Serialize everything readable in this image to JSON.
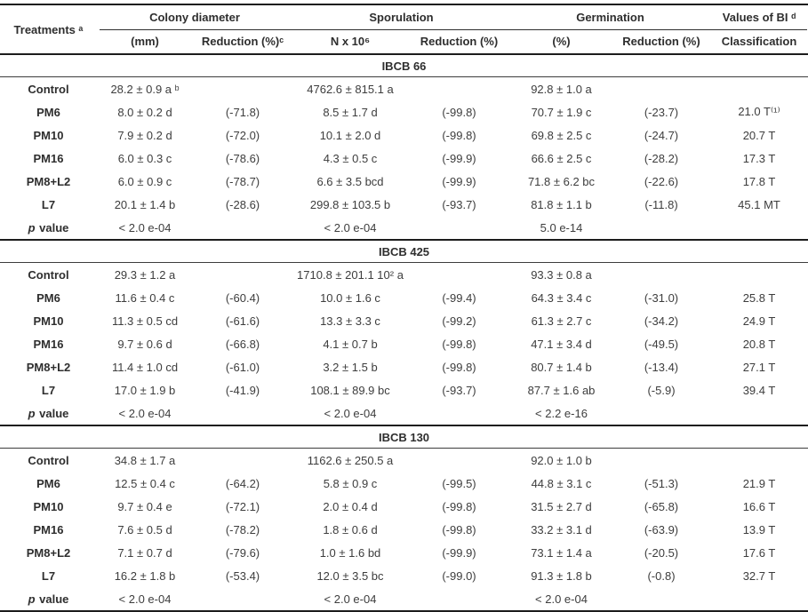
{
  "page": {
    "background": "#ffffff",
    "text_color": "#3d3d3d",
    "heading_color": "#2e2e2e",
    "rule_color": "#1c1c1c"
  },
  "table": {
    "header": {
      "treatments_label": "Treatments ᵃ",
      "groups": [
        {
          "label": "Colony diameter"
        },
        {
          "label": "Sporulation"
        },
        {
          "label": "Germination"
        },
        {
          "label": "Values of BI ᵈ"
        }
      ],
      "subcolumns": [
        "(mm)",
        "Reduction (%)ᶜ",
        "N x 10⁶",
        "Reduction (%)",
        "(%)",
        "Reduction (%)",
        "Classification"
      ]
    },
    "sections": [
      {
        "title": "IBCB 66",
        "rows": [
          {
            "label": "Control",
            "kind": "data",
            "cells": [
              "28.2 ± 0.9 a ᵇ",
              "",
              "4762.6 ± 815.1 a",
              "",
              "92.8 ± 1.0 a",
              "",
              ""
            ]
          },
          {
            "label": "PM6",
            "kind": "data",
            "cells": [
              "8.0 ± 0.2 d",
              "(-71.8)",
              "8.5 ± 1.7 d",
              "(-99.8)",
              "70.7 ± 1.9 c",
              "(-23.7)",
              "21.0 T⁽¹⁾"
            ]
          },
          {
            "label": "PM10",
            "kind": "data",
            "cells": [
              "7.9 ± 0.2 d",
              "(-72.0)",
              "10.1 ± 2.0 d",
              "(-99.8)",
              "69.8 ± 2.5 c",
              "(-24.7)",
              "20.7 T"
            ]
          },
          {
            "label": "PM16",
            "kind": "data",
            "cells": [
              "6.0 ± 0.3 c",
              "(-78.6)",
              "4.3 ± 0.5 c",
              "(-99.9)",
              "66.6 ± 2.5 c",
              "(-28.2)",
              "17.3 T"
            ]
          },
          {
            "label": "PM8+L2",
            "kind": "data",
            "cells": [
              "6.0 ± 0.9 c",
              "(-78.7)",
              "6.6 ± 3.5 bcd",
              "(-99.9)",
              "71.8 ± 6.2 bc",
              "(-22.6)",
              "17.8 T"
            ]
          },
          {
            "label": "L7",
            "kind": "data",
            "cells": [
              "20.1 ± 1.4 b",
              "(-28.6)",
              "299.8 ± 103.5 b",
              "(-93.7)",
              "81.8 ± 1.1 b",
              "(-11.8)",
              "45.1 MT"
            ]
          },
          {
            "label": "p value",
            "kind": "pvalue",
            "cells": [
              "< 2.0 e-04",
              "",
              "< 2.0 e-04",
              "",
              "5.0 e-14",
              "",
              ""
            ]
          }
        ]
      },
      {
        "title": "IBCB 425",
        "rows": [
          {
            "label": "Control",
            "kind": "data",
            "cells": [
              "29.3 ± 1.2 a",
              "",
              "1710.8 ± 201.1 10² a",
              "",
              "93.3 ± 0.8 a",
              "",
              ""
            ]
          },
          {
            "label": "PM6",
            "kind": "data",
            "cells": [
              "11.6 ± 0.4 c",
              "(-60.4)",
              "10.0 ± 1.6 c",
              "(-99.4)",
              "64.3 ± 3.4 c",
              "(-31.0)",
              "25.8 T"
            ]
          },
          {
            "label": "PM10",
            "kind": "data",
            "cells": [
              "11.3 ± 0.5 cd",
              "(-61.6)",
              "13.3 ± 3.3 c",
              "(-99.2)",
              "61.3 ± 2.7 c",
              "(-34.2)",
              "24.9 T"
            ]
          },
          {
            "label": "PM16",
            "kind": "data",
            "cells": [
              "9.7 ± 0.6 d",
              "(-66.8)",
              "4.1 ± 0.7 b",
              "(-99.8)",
              "47.1 ± 3.4 d",
              "(-49.5)",
              "20.8 T"
            ]
          },
          {
            "label": "PM8+L2",
            "kind": "data",
            "cells": [
              "11.4 ± 1.0 cd",
              "(-61.0)",
              "3.2 ± 1.5 b",
              "(-99.8)",
              "80.7 ± 1.4 b",
              "(-13.4)",
              "27.1 T"
            ]
          },
          {
            "label": "L7",
            "kind": "data",
            "cells": [
              "17.0 ± 1.9 b",
              "(-41.9)",
              "108.1 ± 89.9 bc",
              "(-93.7)",
              "87.7 ± 1.6 ab",
              "(-5.9)",
              "39.4 T"
            ]
          },
          {
            "label": "p value",
            "kind": "pvalue",
            "cells": [
              "< 2.0 e-04",
              "",
              "< 2.0 e-04",
              "",
              "< 2.2 e-16",
              "",
              ""
            ]
          }
        ]
      },
      {
        "title": "IBCB 130",
        "rows": [
          {
            "label": "Control",
            "kind": "data",
            "cells": [
              "34.8 ± 1.7 a",
              "",
              "1162.6 ± 250.5 a",
              "",
              "92.0 ± 1.0 b",
              "",
              ""
            ]
          },
          {
            "label": "PM6",
            "kind": "data",
            "cells": [
              "12.5 ± 0.4 c",
              "(-64.2)",
              "5.8 ± 0.9 c",
              "(-99.5)",
              "44.8 ± 3.1 c",
              "(-51.3)",
              "21.9 T"
            ]
          },
          {
            "label": "PM10",
            "kind": "data",
            "cells": [
              "9.7 ± 0.4 e",
              "(-72.1)",
              "2.0 ± 0.4 d",
              "(-99.8)",
              "31.5 ± 2.7 d",
              "(-65.8)",
              "16.6 T"
            ]
          },
          {
            "label": "PM16",
            "kind": "data",
            "cells": [
              "7.6 ± 0.5 d",
              "(-78.2)",
              "1.8 ± 0.6 d",
              "(-99.8)",
              "33.2 ± 3.1 d",
              "(-63.9)",
              "13.9 T"
            ]
          },
          {
            "label": "PM8+L2",
            "kind": "data",
            "cells": [
              "7.1 ± 0.7 d",
              "(-79.6)",
              "1.0 ± 1.6 bd",
              "(-99.9)",
              "73.1 ± 1.4 a",
              "(-20.5)",
              "17.6 T"
            ]
          },
          {
            "label": "L7",
            "kind": "data",
            "cells": [
              "16.2 ± 1.8 b",
              "(-53.4)",
              "12.0 ± 3.5 bc",
              "(-99.0)",
              "91.3 ± 1.8 b",
              "(-0.8)",
              "32.7 T"
            ]
          },
          {
            "label": "p value",
            "kind": "pvalue",
            "cells": [
              "< 2.0 e-04",
              "",
              "< 2.0 e-04",
              "",
              "< 2.0 e-04",
              "",
              ""
            ]
          }
        ]
      }
    ]
  }
}
